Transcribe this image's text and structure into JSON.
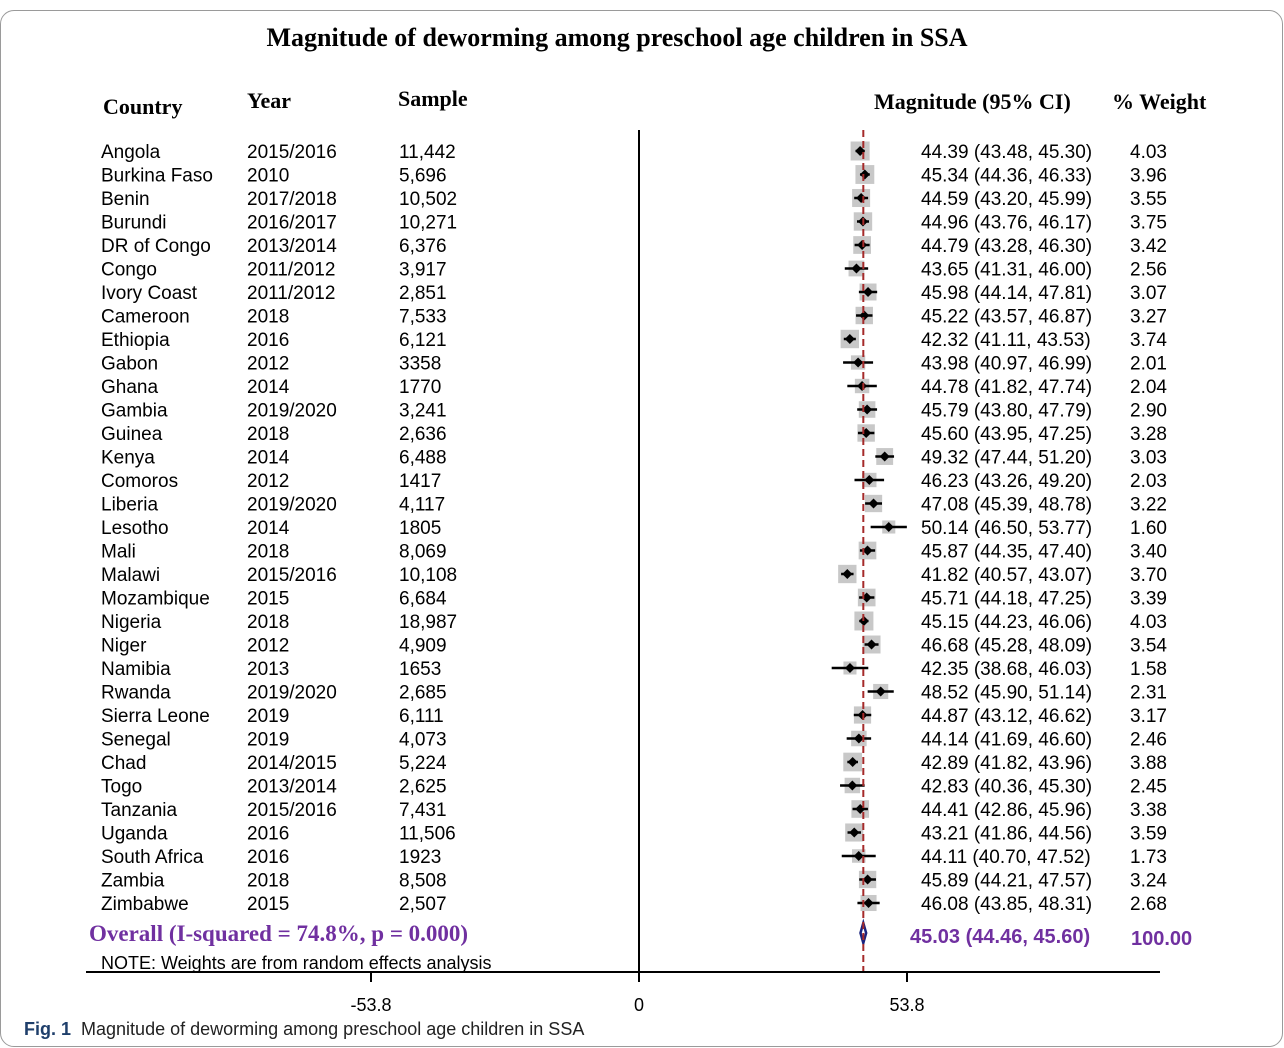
{
  "chart_data": {
    "type": "forest",
    "title": "Magnitude of deworming among preschool age children in SSA",
    "columns": {
      "country": "Country",
      "year": "Year",
      "sample": "Sample",
      "ci": "Magnitude (95% CI)",
      "weight": "% Weight"
    },
    "rows": [
      {
        "country": "Angola",
        "year": "2015/2016",
        "sample": "11,442",
        "est": 44.39,
        "lo": 43.48,
        "hi": 45.3,
        "ci_text": "44.39 (43.48, 45.30)",
        "weight": 4.03,
        "weight_text": "4.03"
      },
      {
        "country": "Burkina Faso",
        "year": "2010",
        "sample": "5,696",
        "est": 45.34,
        "lo": 44.36,
        "hi": 46.33,
        "ci_text": "45.34 (44.36, 46.33)",
        "weight": 3.96,
        "weight_text": "3.96"
      },
      {
        "country": "Benin",
        "year": "2017/2018",
        "sample": "10,502",
        "est": 44.59,
        "lo": 43.2,
        "hi": 45.99,
        "ci_text": "44.59 (43.20, 45.99)",
        "weight": 3.55,
        "weight_text": "3.55"
      },
      {
        "country": "Burundi",
        "year": "2016/2017",
        "sample": "10,271",
        "est": 44.96,
        "lo": 43.76,
        "hi": 46.17,
        "ci_text": "44.96 (43.76, 46.17)",
        "weight": 3.75,
        "weight_text": "3.75"
      },
      {
        "country": "DR of Congo",
        "year": "2013/2014",
        "sample": "6,376",
        "est": 44.79,
        "lo": 43.28,
        "hi": 46.3,
        "ci_text": "44.79 (43.28, 46.30)",
        "weight": 3.42,
        "weight_text": "3.42"
      },
      {
        "country": "Congo",
        "year": "2011/2012",
        "sample": "3,917",
        "est": 43.65,
        "lo": 41.31,
        "hi": 46.0,
        "ci_text": "43.65 (41.31, 46.00)",
        "weight": 2.56,
        "weight_text": "2.56"
      },
      {
        "country": "Ivory Coast",
        "year": "2011/2012",
        "sample": "2,851",
        "est": 45.98,
        "lo": 44.14,
        "hi": 47.81,
        "ci_text": "45.98 (44.14, 47.81)",
        "weight": 3.07,
        "weight_text": "3.07"
      },
      {
        "country": "Cameroon",
        "year": "2018",
        "sample": "7,533",
        "est": 45.22,
        "lo": 43.57,
        "hi": 46.87,
        "ci_text": "45.22 (43.57, 46.87)",
        "weight": 3.27,
        "weight_text": "3.27"
      },
      {
        "country": "Ethiopia",
        "year": "2016",
        "sample": "6,121",
        "est": 42.32,
        "lo": 41.11,
        "hi": 43.53,
        "ci_text": "42.32 (41.11, 43.53)",
        "weight": 3.74,
        "weight_text": "3.74"
      },
      {
        "country": "Gabon",
        "year": "2012",
        "sample": "3358",
        "est": 43.98,
        "lo": 40.97,
        "hi": 46.99,
        "ci_text": "43.98 (40.97, 46.99)",
        "weight": 2.01,
        "weight_text": "2.01"
      },
      {
        "country": "Ghana",
        "year": "2014",
        "sample": "1770",
        "est": 44.78,
        "lo": 41.82,
        "hi": 47.74,
        "ci_text": "44.78 (41.82, 47.74)",
        "weight": 2.04,
        "weight_text": "2.04"
      },
      {
        "country": "Gambia",
        "year": "2019/2020",
        "sample": "3,241",
        "est": 45.79,
        "lo": 43.8,
        "hi": 47.79,
        "ci_text": "45.79 (43.80, 47.79)",
        "weight": 2.9,
        "weight_text": "2.90"
      },
      {
        "country": "Guinea",
        "year": "2018",
        "sample": "2,636",
        "est": 45.6,
        "lo": 43.95,
        "hi": 47.25,
        "ci_text": "45.60 (43.95, 47.25)",
        "weight": 3.28,
        "weight_text": "3.28"
      },
      {
        "country": "Kenya",
        "year": "2014",
        "sample": "6,488",
        "est": 49.32,
        "lo": 47.44,
        "hi": 51.2,
        "ci_text": "49.32 (47.44, 51.20)",
        "weight": 3.03,
        "weight_text": "3.03"
      },
      {
        "country": "Comoros",
        "year": "2012",
        "sample": "1417",
        "est": 46.23,
        "lo": 43.26,
        "hi": 49.2,
        "ci_text": "46.23 (43.26, 49.20)",
        "weight": 2.03,
        "weight_text": "2.03"
      },
      {
        "country": "Liberia",
        "year": "2019/2020",
        "sample": "4,117",
        "est": 47.08,
        "lo": 45.39,
        "hi": 48.78,
        "ci_text": "47.08 (45.39, 48.78)",
        "weight": 3.22,
        "weight_text": "3.22"
      },
      {
        "country": "Lesotho",
        "year": "2014",
        "sample": "1805",
        "est": 50.14,
        "lo": 46.5,
        "hi": 53.77,
        "ci_text": "50.14 (46.50, 53.77)",
        "weight": 1.6,
        "weight_text": "1.60"
      },
      {
        "country": "Mali",
        "year": "2018",
        "sample": "8,069",
        "est": 45.87,
        "lo": 44.35,
        "hi": 47.4,
        "ci_text": "45.87 (44.35, 47.40)",
        "weight": 3.4,
        "weight_text": "3.40"
      },
      {
        "country": "Malawi",
        "year": "2015/2016",
        "sample": "10,108",
        "est": 41.82,
        "lo": 40.57,
        "hi": 43.07,
        "ci_text": "41.82 (40.57, 43.07)",
        "weight": 3.7,
        "weight_text": "3.70"
      },
      {
        "country": "Mozambique",
        "year": "2015",
        "sample": "6,684",
        "est": 45.71,
        "lo": 44.18,
        "hi": 47.25,
        "ci_text": "45.71 (44.18, 47.25)",
        "weight": 3.39,
        "weight_text": "3.39"
      },
      {
        "country": "Nigeria",
        "year": "2018",
        "sample": "18,987",
        "est": 45.15,
        "lo": 44.23,
        "hi": 46.06,
        "ci_text": "45.15 (44.23, 46.06)",
        "weight": 4.03,
        "weight_text": "4.03"
      },
      {
        "country": "Niger",
        "year": "2012",
        "sample": "4,909",
        "est": 46.68,
        "lo": 45.28,
        "hi": 48.09,
        "ci_text": "46.68 (45.28, 48.09)",
        "weight": 3.54,
        "weight_text": "3.54"
      },
      {
        "country": "Namibia",
        "year": "2013",
        "sample": "1653",
        "est": 42.35,
        "lo": 38.68,
        "hi": 46.03,
        "ci_text": "42.35 (38.68, 46.03)",
        "weight": 1.58,
        "weight_text": "1.58"
      },
      {
        "country": "Rwanda",
        "year": "2019/2020",
        "sample": "2,685",
        "est": 48.52,
        "lo": 45.9,
        "hi": 51.14,
        "ci_text": "48.52 (45.90, 51.14)",
        "weight": 2.31,
        "weight_text": "2.31"
      },
      {
        "country": "Sierra Leone",
        "year": "2019",
        "sample": "6,111",
        "est": 44.87,
        "lo": 43.12,
        "hi": 46.62,
        "ci_text": "44.87 (43.12, 46.62)",
        "weight": 3.17,
        "weight_text": "3.17"
      },
      {
        "country": "Senegal",
        "year": "2019",
        "sample": "4,073",
        "est": 44.14,
        "lo": 41.69,
        "hi": 46.6,
        "ci_text": "44.14 (41.69, 46.60)",
        "weight": 2.46,
        "weight_text": "2.46"
      },
      {
        "country": "Chad",
        "year": "2014/2015",
        "sample": "5,224",
        "est": 42.89,
        "lo": 41.82,
        "hi": 43.96,
        "ci_text": "42.89 (41.82, 43.96)",
        "weight": 3.88,
        "weight_text": "3.88"
      },
      {
        "country": "Togo",
        "year": "2013/2014",
        "sample": "2,625",
        "est": 42.83,
        "lo": 40.36,
        "hi": 45.3,
        "ci_text": "42.83 (40.36, 45.30)",
        "weight": 2.45,
        "weight_text": "2.45"
      },
      {
        "country": "Tanzania",
        "year": "2015/2016",
        "sample": "7,431",
        "est": 44.41,
        "lo": 42.86,
        "hi": 45.96,
        "ci_text": "44.41 (42.86, 45.96)",
        "weight": 3.38,
        "weight_text": "3.38"
      },
      {
        "country": "Uganda",
        "year": "2016",
        "sample": "11,506",
        "est": 43.21,
        "lo": 41.86,
        "hi": 44.56,
        "ci_text": "43.21 (41.86, 44.56)",
        "weight": 3.59,
        "weight_text": "3.59"
      },
      {
        "country": "South Africa",
        "year": "2016",
        "sample": "1923",
        "est": 44.11,
        "lo": 40.7,
        "hi": 47.52,
        "ci_text": "44.11 (40.70, 47.52)",
        "weight": 1.73,
        "weight_text": "1.73"
      },
      {
        "country": "Zambia",
        "year": "2018",
        "sample": "8,508",
        "est": 45.89,
        "lo": 44.21,
        "hi": 47.57,
        "ci_text": "45.89 (44.21, 47.57)",
        "weight": 3.24,
        "weight_text": "3.24"
      },
      {
        "country": "Zimbabwe",
        "year": "2015",
        "sample": "2,507",
        "est": 46.08,
        "lo": 43.85,
        "hi": 48.31,
        "ci_text": "46.08 (43.85, 48.31)",
        "weight": 2.68,
        "weight_text": "2.68"
      }
    ],
    "overall": {
      "label": "Overall  (I-squared = 74.8%, p = 0.000)",
      "est": 45.03,
      "lo": 44.46,
      "hi": 45.6,
      "ci_text": "45.03 (44.46, 45.60)",
      "weight_text": "100.00"
    },
    "note": "NOTE: Weights are from random effects analysis",
    "xaxis": {
      "range": [
        -80,
        100
      ],
      "ticks": [
        -53.8,
        0,
        53.8
      ],
      "tick_labels": [
        "-53.8",
        "0",
        "53.8"
      ],
      "null_line": 0,
      "overall_line": 45.03
    },
    "colors": {
      "text": "#000000",
      "overall_text": "#7030a0",
      "overall_diamond": "#1a237e",
      "overall_line": "#a52a2a",
      "weight_box": "#c8c8c8",
      "marker": "#000000"
    }
  },
  "caption": {
    "label": "Fig. 1",
    "text": "Magnitude of deworming among preschool age children in SSA"
  }
}
